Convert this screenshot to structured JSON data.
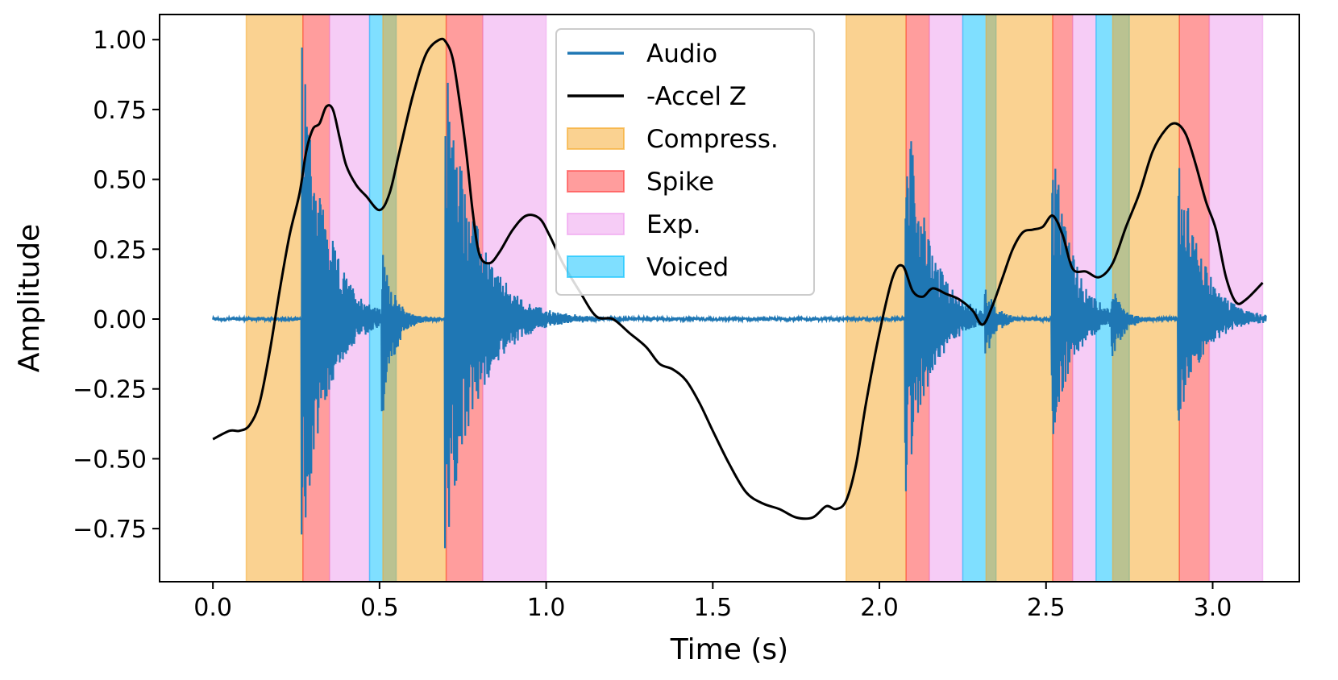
{
  "chart_data": {
    "type": "line",
    "xlabel": "Time (s)",
    "ylabel": "Amplitude",
    "xlim": [
      -0.16,
      3.26
    ],
    "ylim": [
      -0.94,
      1.09
    ],
    "xticks": [
      0.0,
      0.5,
      1.0,
      1.5,
      2.0,
      2.5,
      3.0
    ],
    "xtick_labels": [
      "0.0",
      "0.5",
      "1.0",
      "1.5",
      "2.0",
      "2.5",
      "3.0"
    ],
    "yticks": [
      1.0,
      0.75,
      0.5,
      0.25,
      0.0,
      -0.25,
      -0.5,
      -0.75
    ],
    "ytick_labels": [
      "1.00",
      "0.75",
      "0.50",
      "0.25",
      "0.00",
      "−0.25",
      "−0.50",
      "−0.75"
    ],
    "grid": false,
    "legend_position": "top-center",
    "legend": [
      {
        "label": "Audio",
        "kind": "line",
        "color": "#1f77b4"
      },
      {
        "label": "-Accel Z",
        "kind": "line",
        "color": "#000000"
      },
      {
        "label": "Compress.",
        "kind": "patch",
        "color": "#f5a623"
      },
      {
        "label": "Spike",
        "kind": "patch",
        "color": "#ff3b3b"
      },
      {
        "label": "Exp.",
        "kind": "patch",
        "color": "#ee99ee"
      },
      {
        "label": "Voiced",
        "kind": "patch",
        "color": "#00bfff"
      }
    ],
    "regions": [
      {
        "type": "Compress.",
        "start": 0.1,
        "end": 0.27
      },
      {
        "type": "Spike",
        "start": 0.27,
        "end": 0.35
      },
      {
        "type": "Exp.",
        "start": 0.35,
        "end": 0.47
      },
      {
        "type": "Voiced",
        "start": 0.47,
        "end": 0.55
      },
      {
        "type": "Compress.",
        "start": 0.51,
        "end": 0.7
      },
      {
        "type": "Spike",
        "start": 0.7,
        "end": 0.81
      },
      {
        "type": "Exp.",
        "start": 0.81,
        "end": 1.0
      },
      {
        "type": "Compress.",
        "start": 1.9,
        "end": 2.08
      },
      {
        "type": "Spike",
        "start": 2.08,
        "end": 2.15
      },
      {
        "type": "Exp.",
        "start": 2.15,
        "end": 2.25
      },
      {
        "type": "Voiced",
        "start": 2.25,
        "end": 2.35
      },
      {
        "type": "Compress.",
        "start": 2.32,
        "end": 2.52
      },
      {
        "type": "Spike",
        "start": 2.52,
        "end": 2.58
      },
      {
        "type": "Exp.",
        "start": 2.58,
        "end": 2.65
      },
      {
        "type": "Voiced",
        "start": 2.65,
        "end": 2.75
      },
      {
        "type": "Compress.",
        "start": 2.7,
        "end": 2.9
      },
      {
        "type": "Spike",
        "start": 2.9,
        "end": 2.99
      },
      {
        "type": "Exp.",
        "start": 2.99,
        "end": 3.15
      }
    ],
    "accel_z": {
      "name": "-Accel Z",
      "color": "#000000",
      "x": [
        0.0,
        0.05,
        0.08,
        0.11,
        0.14,
        0.17,
        0.2,
        0.23,
        0.26,
        0.28,
        0.3,
        0.32,
        0.34,
        0.36,
        0.38,
        0.4,
        0.43,
        0.46,
        0.5,
        0.53,
        0.56,
        0.6,
        0.64,
        0.68,
        0.7,
        0.72,
        0.74,
        0.76,
        0.78,
        0.8,
        0.83,
        0.86,
        0.9,
        0.94,
        0.98,
        1.01,
        1.05,
        1.1,
        1.15,
        1.2,
        1.25,
        1.3,
        1.34,
        1.38,
        1.42,
        1.46,
        1.5,
        1.55,
        1.6,
        1.65,
        1.7,
        1.75,
        1.8,
        1.84,
        1.87,
        1.9,
        1.93,
        1.96,
        2.0,
        2.04,
        2.07,
        2.1,
        2.13,
        2.16,
        2.2,
        2.24,
        2.28,
        2.31,
        2.34,
        2.37,
        2.4,
        2.43,
        2.46,
        2.49,
        2.52,
        2.55,
        2.58,
        2.62,
        2.66,
        2.7,
        2.74,
        2.78,
        2.82,
        2.86,
        2.89,
        2.92,
        2.95,
        2.98,
        3.01,
        3.04,
        3.07,
        3.1,
        3.15
      ],
      "y": [
        -0.43,
        -0.4,
        -0.4,
        -0.38,
        -0.3,
        -0.12,
        0.1,
        0.3,
        0.45,
        0.6,
        0.68,
        0.7,
        0.76,
        0.75,
        0.65,
        0.55,
        0.48,
        0.44,
        0.39,
        0.45,
        0.6,
        0.8,
        0.95,
        1.0,
        0.99,
        0.93,
        0.78,
        0.6,
        0.38,
        0.23,
        0.2,
        0.24,
        0.32,
        0.37,
        0.36,
        0.3,
        0.2,
        0.1,
        0.01,
        0.0,
        -0.05,
        -0.1,
        -0.16,
        -0.18,
        -0.22,
        -0.3,
        -0.4,
        -0.52,
        -0.62,
        -0.66,
        -0.68,
        -0.71,
        -0.71,
        -0.67,
        -0.68,
        -0.65,
        -0.52,
        -0.3,
        -0.05,
        0.15,
        0.19,
        0.1,
        0.08,
        0.11,
        0.09,
        0.07,
        0.03,
        -0.02,
        0.05,
        0.15,
        0.25,
        0.31,
        0.32,
        0.33,
        0.37,
        0.3,
        0.18,
        0.17,
        0.15,
        0.2,
        0.33,
        0.45,
        0.6,
        0.68,
        0.7,
        0.66,
        0.55,
        0.42,
        0.32,
        0.15,
        0.06,
        0.07,
        0.13
      ]
    },
    "audio": {
      "name": "Audio",
      "color": "#1f77b4",
      "x_range": [
        0.0,
        3.16
      ],
      "noise_floor": 0.005,
      "bursts": [
        {
          "t": 0.27,
          "peak": 1.0,
          "trough": -0.82,
          "decay": 0.07
        },
        {
          "t": 0.51,
          "peak": 0.24,
          "trough": -0.36,
          "decay": 0.035
        },
        {
          "t": 0.7,
          "peak": 0.94,
          "trough": -0.85,
          "decay": 0.09
        },
        {
          "t": 2.08,
          "peak": 0.8,
          "trough": -0.62,
          "decay": 0.07
        },
        {
          "t": 2.32,
          "peak": 0.13,
          "trough": -0.15,
          "decay": 0.03
        },
        {
          "t": 2.52,
          "peak": 0.64,
          "trough": -0.46,
          "decay": 0.06
        },
        {
          "t": 2.7,
          "peak": 0.12,
          "trough": -0.18,
          "decay": 0.03
        },
        {
          "t": 2.9,
          "peak": 0.59,
          "trough": -0.37,
          "decay": 0.07
        }
      ]
    }
  }
}
